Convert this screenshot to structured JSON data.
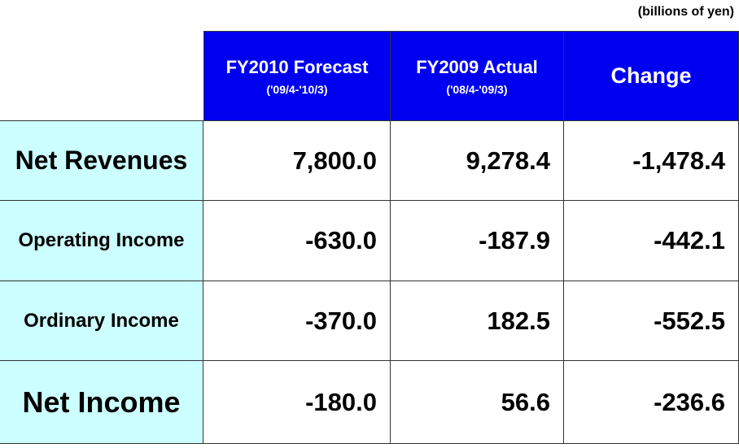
{
  "unit_note": "(billions of yen)",
  "columns": [
    {
      "title": "FY2010 Forecast",
      "sub": "('09/4-'10/3)"
    },
    {
      "title": "FY2009 Actual",
      "sub": "('08/4-'09/3)"
    },
    {
      "title": "Change",
      "sub": ""
    }
  ],
  "rows": [
    {
      "label": "Net Revenues",
      "values": [
        "7,800.0",
        "9,278.4",
        "-1,478.4"
      ]
    },
    {
      "label": "Operating Income",
      "values": [
        "-630.0",
        "-187.9",
        "-442.1"
      ]
    },
    {
      "label": "Ordinary Income",
      "values": [
        "-370.0",
        "182.5",
        "-552.5"
      ]
    },
    {
      "label": "Net Income",
      "values": [
        "-180.0",
        "56.6",
        "-236.6"
      ]
    }
  ],
  "colors": {
    "header_bg": "#0000f0",
    "label_bg": "#ccffff"
  }
}
